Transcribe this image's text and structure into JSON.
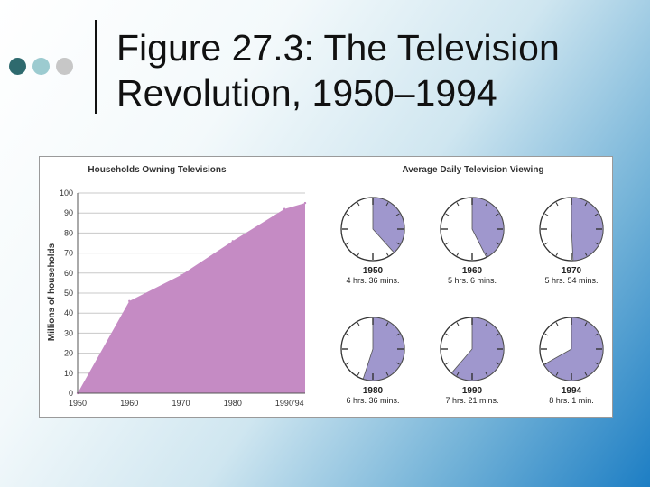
{
  "slide": {
    "title_line1": "Figure 27.3: The Television",
    "title_line2": "Revolution, 1950–1994"
  },
  "colors": {
    "area_fill": "#c58bc4",
    "clock_fill": "#9f97cd",
    "dot1": "#2e6a6e",
    "dot2": "#9ccbd0",
    "dot3": "#c7c7c7"
  },
  "chart_data": [
    {
      "type": "area",
      "title": "Households Owning Televisions",
      "xlabel": "",
      "ylabel": "Millions of households",
      "x": [
        1950,
        1960,
        1970,
        1980,
        1990,
        1994
      ],
      "x_tick_labels": [
        "1950",
        "1960",
        "1970",
        "1980",
        "1990'94"
      ],
      "y_ticks": [
        0,
        10,
        20,
        30,
        40,
        50,
        60,
        70,
        80,
        90,
        100
      ],
      "ylim": [
        0,
        100
      ],
      "xlim": [
        1950,
        1994
      ],
      "grid": true,
      "values": [
        0,
        46,
        59,
        76,
        92,
        95
      ]
    },
    {
      "type": "pie",
      "title": "Average Daily Television Viewing",
      "unit": "hours of a 12-hour clock face",
      "items": [
        {
          "year": "1950",
          "label": "4 hrs. 36 mins.",
          "hours": 4.6
        },
        {
          "year": "1960",
          "label": "5 hrs. 6 mins.",
          "hours": 5.1
        },
        {
          "year": "1970",
          "label": "5 hrs. 54 mins.",
          "hours": 5.9
        },
        {
          "year": "1980",
          "label": "6 hrs. 36 mins.",
          "hours": 6.6
        },
        {
          "year": "1990",
          "label": "7 hrs. 21 mins.",
          "hours": 7.35
        },
        {
          "year": "1994",
          "label": "8 hrs. 1 min.",
          "hours": 8.0167
        }
      ]
    }
  ]
}
